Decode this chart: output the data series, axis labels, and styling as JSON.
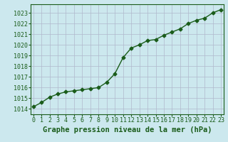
{
  "x": [
    0,
    1,
    2,
    3,
    4,
    5,
    6,
    7,
    8,
    9,
    10,
    11,
    12,
    13,
    14,
    15,
    16,
    17,
    18,
    19,
    20,
    21,
    22,
    23
  ],
  "y": [
    1014.2,
    1014.6,
    1015.1,
    1015.4,
    1015.6,
    1015.7,
    1015.8,
    1015.9,
    1016.0,
    1016.5,
    1017.3,
    1018.8,
    1019.7,
    1020.0,
    1020.4,
    1020.5,
    1020.9,
    1021.2,
    1021.5,
    1022.0,
    1022.3,
    1022.5,
    1023.0,
    1023.3
  ],
  "line_color": "#1a5c1a",
  "marker": "D",
  "marker_size": 2.5,
  "line_width": 1.0,
  "background_color": "#cce8ee",
  "grid_color": "#b0b8cc",
  "xlabel": "Graphe pression niveau de la mer (hPa)",
  "xlabel_color": "#1a5c1a",
  "xlabel_fontsize": 7.5,
  "tick_color": "#1a5c1a",
  "tick_fontsize": 6.0,
  "ylim": [
    1013.5,
    1023.8
  ],
  "yticks": [
    1014,
    1015,
    1016,
    1017,
    1018,
    1019,
    1020,
    1021,
    1022,
    1023
  ],
  "xlim": [
    -0.3,
    23.3
  ],
  "xticks": [
    0,
    1,
    2,
    3,
    4,
    5,
    6,
    7,
    8,
    9,
    10,
    11,
    12,
    13,
    14,
    15,
    16,
    17,
    18,
    19,
    20,
    21,
    22,
    23
  ],
  "spine_color": "#1a5c1a"
}
